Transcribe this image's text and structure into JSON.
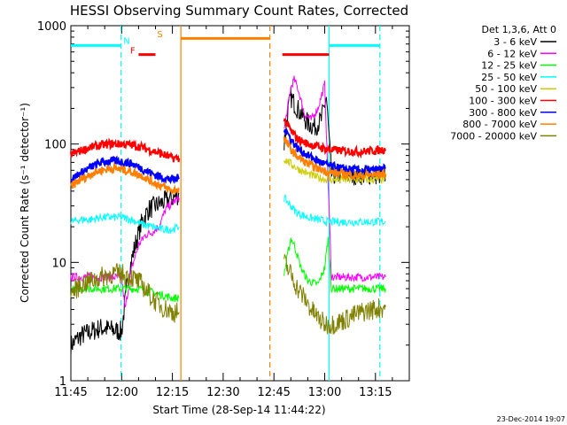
{
  "chart_data": {
    "type": "line",
    "title": "HESSI Observing Summary Count Rates, Corrected",
    "xlabel": "Start Time (28-Sep-14 11:44:22)",
    "ylabel": "Corrected Count Rate (s⁻¹ detector⁻¹)",
    "yscale": "log",
    "ylim": [
      1,
      1000
    ],
    "xlim_minutes": [
      0,
      100
    ],
    "x_ticks": [
      {
        "label": "11:45",
        "t": 0
      },
      {
        "label": "12:00",
        "t": 15
      },
      {
        "label": "12:15",
        "t": 30
      },
      {
        "label": "12:30",
        "t": 45
      },
      {
        "label": "12:45",
        "t": 60
      },
      {
        "label": "13:00",
        "t": 75
      },
      {
        "label": "13:15",
        "t": 90
      }
    ],
    "y_ticks": [
      {
        "label": "1",
        "v": 1
      },
      {
        "label": "10",
        "v": 10
      },
      {
        "label": "100",
        "v": 100
      },
      {
        "label": "1000",
        "v": 1000
      }
    ],
    "grid": false,
    "legend_position": "right",
    "legend_header": "Det 1,3,6, Att 0",
    "timestamp": "23-Dec-2014 19:07",
    "series": [
      {
        "name": "3 - 6 keV",
        "color": "#000000",
        "points": [
          [
            0,
            2.0
          ],
          [
            3,
            2.4
          ],
          [
            6,
            2.6
          ],
          [
            9,
            2.8
          ],
          [
            12,
            2.7
          ],
          [
            15,
            2.6
          ],
          [
            17,
            8
          ],
          [
            19,
            14
          ],
          [
            21,
            22
          ],
          [
            23,
            28
          ],
          [
            25,
            30
          ],
          [
            27,
            32
          ],
          [
            29,
            34
          ],
          [
            31,
            36
          ],
          [
            32,
            38
          ],
          [
            63,
            100
          ],
          [
            64,
            180
          ],
          [
            65,
            250
          ],
          [
            66,
            220
          ],
          [
            68,
            180
          ],
          [
            70,
            150
          ],
          [
            72,
            140
          ],
          [
            74,
            160
          ],
          [
            75.5,
            250
          ],
          [
            77,
            55
          ],
          [
            80,
            55
          ],
          [
            85,
            55
          ],
          [
            90,
            55
          ],
          [
            93,
            55
          ]
        ]
      },
      {
        "name": "6 - 12 keV",
        "color": "#ff00ff",
        "points": [
          [
            0,
            7.5
          ],
          [
            5,
            7.5
          ],
          [
            10,
            7.5
          ],
          [
            15,
            7.5
          ],
          [
            16,
            4.0
          ],
          [
            18,
            9
          ],
          [
            20,
            14
          ],
          [
            22,
            17
          ],
          [
            24,
            18
          ],
          [
            26,
            20
          ],
          [
            28,
            28
          ],
          [
            30,
            32
          ],
          [
            32,
            35
          ],
          [
            63,
            130
          ],
          [
            65,
            300
          ],
          [
            66,
            350
          ],
          [
            67,
            300
          ],
          [
            69,
            180
          ],
          [
            71,
            160
          ],
          [
            73,
            200
          ],
          [
            75,
            320
          ],
          [
            77,
            7.5
          ],
          [
            85,
            7.5
          ],
          [
            93,
            7.5
          ]
        ]
      },
      {
        "name": "12 - 25 keV",
        "color": "#00ff00",
        "points": [
          [
            0,
            6.0
          ],
          [
            5,
            6.0
          ],
          [
            10,
            6.0
          ],
          [
            15,
            6.0
          ],
          [
            20,
            6.0
          ],
          [
            25,
            5.5
          ],
          [
            30,
            5.0
          ],
          [
            32,
            5.0
          ],
          [
            63,
            8
          ],
          [
            65,
            16
          ],
          [
            66,
            14
          ],
          [
            68,
            9
          ],
          [
            70,
            7
          ],
          [
            73,
            6.5
          ],
          [
            75,
            9
          ],
          [
            76,
            16
          ],
          [
            77,
            6
          ],
          [
            85,
            6
          ],
          [
            93,
            6
          ]
        ]
      },
      {
        "name": "25 - 50 keV",
        "color": "#00ffff",
        "points": [
          [
            0,
            22
          ],
          [
            3,
            23
          ],
          [
            6,
            23
          ],
          [
            9,
            24
          ],
          [
            12,
            24
          ],
          [
            15,
            24
          ],
          [
            18,
            23
          ],
          [
            21,
            21
          ],
          [
            24,
            20
          ],
          [
            27,
            19
          ],
          [
            30,
            19
          ],
          [
            32,
            20
          ],
          [
            63,
            35
          ],
          [
            65,
            30
          ],
          [
            67,
            26
          ],
          [
            70,
            24
          ],
          [
            73,
            23
          ],
          [
            76,
            22
          ],
          [
            80,
            22
          ],
          [
            85,
            22
          ],
          [
            90,
            22
          ],
          [
            93,
            22
          ]
        ]
      },
      {
        "name": "50 - 100 keV",
        "color": "#cccc00",
        "points": [
          [
            63,
            75
          ],
          [
            65,
            68
          ],
          [
            67,
            62
          ],
          [
            70,
            56
          ],
          [
            73,
            52
          ],
          [
            76,
            50
          ],
          [
            80,
            50
          ],
          [
            85,
            50
          ],
          [
            90,
            50
          ],
          [
            93,
            50
          ]
        ]
      },
      {
        "name": "100 - 300 keV",
        "color": "#ff0000",
        "points": [
          [
            0,
            82
          ],
          [
            3,
            88
          ],
          [
            6,
            94
          ],
          [
            9,
            98
          ],
          [
            12,
            100
          ],
          [
            15,
            100
          ],
          [
            18,
            98
          ],
          [
            21,
            94
          ],
          [
            24,
            88
          ],
          [
            27,
            82
          ],
          [
            30,
            76
          ],
          [
            32,
            76
          ],
          [
            63,
            160
          ],
          [
            65,
            130
          ],
          [
            67,
            110
          ],
          [
            70,
            100
          ],
          [
            73,
            95
          ],
          [
            76,
            90
          ],
          [
            80,
            88
          ],
          [
            85,
            86
          ],
          [
            90,
            88
          ],
          [
            93,
            90
          ]
        ]
      },
      {
        "name": "300 - 800 keV",
        "color": "#0000ff",
        "points": [
          [
            0,
            50
          ],
          [
            3,
            57
          ],
          [
            6,
            64
          ],
          [
            9,
            70
          ],
          [
            12,
            72
          ],
          [
            15,
            71
          ],
          [
            18,
            68
          ],
          [
            21,
            62
          ],
          [
            24,
            56
          ],
          [
            27,
            52
          ],
          [
            30,
            50
          ],
          [
            32,
            52
          ],
          [
            63,
            140
          ],
          [
            65,
            110
          ],
          [
            67,
            92
          ],
          [
            70,
            80
          ],
          [
            73,
            72
          ],
          [
            76,
            66
          ],
          [
            80,
            62
          ],
          [
            85,
            60
          ],
          [
            90,
            60
          ],
          [
            93,
            62
          ]
        ]
      },
      {
        "name": "800 - 7000 keV",
        "color": "#ff8000",
        "points": [
          [
            0,
            44
          ],
          [
            3,
            50
          ],
          [
            6,
            56
          ],
          [
            9,
            60
          ],
          [
            12,
            62
          ],
          [
            15,
            61
          ],
          [
            18,
            58
          ],
          [
            21,
            54
          ],
          [
            24,
            48
          ],
          [
            27,
            44
          ],
          [
            30,
            40
          ],
          [
            32,
            42
          ],
          [
            63,
            110
          ],
          [
            65,
            90
          ],
          [
            67,
            78
          ],
          [
            70,
            68
          ],
          [
            73,
            62
          ],
          [
            76,
            58
          ],
          [
            80,
            56
          ],
          [
            85,
            54
          ],
          [
            90,
            55
          ],
          [
            93,
            56
          ]
        ]
      },
      {
        "name": "7000 - 20000 keV",
        "color": "#808000",
        "points": [
          [
            0,
            5.5
          ],
          [
            3,
            6.5
          ],
          [
            6,
            7.0
          ],
          [
            9,
            7.5
          ],
          [
            12,
            8.0
          ],
          [
            15,
            8.0
          ],
          [
            18,
            7.5
          ],
          [
            21,
            6.5
          ],
          [
            24,
            5.0
          ],
          [
            27,
            4.2
          ],
          [
            30,
            3.8
          ],
          [
            32,
            3.8
          ],
          [
            63,
            10
          ],
          [
            65,
            8
          ],
          [
            67,
            6
          ],
          [
            69,
            5
          ],
          [
            71,
            4
          ],
          [
            73,
            3.4
          ],
          [
            75,
            3.0
          ],
          [
            77,
            3.0
          ],
          [
            80,
            3.2
          ],
          [
            83,
            3.5
          ],
          [
            86,
            3.8
          ],
          [
            89,
            4.0
          ],
          [
            93,
            4.2
          ]
        ]
      }
    ],
    "annotations": {
      "labels": [
        {
          "text": "N",
          "color": "#00ffff",
          "t": 15.5,
          "v": 700
        },
        {
          "text": "F",
          "color": "#ff0000",
          "t": 17.5,
          "v": 580
        },
        {
          "text": "S",
          "color": "#ff8000",
          "t": 25.5,
          "v": 800
        }
      ],
      "bars": [
        {
          "color": "#00ffff",
          "t0": 0,
          "t1": 14.8,
          "v": 680
        },
        {
          "color": "#00ffff",
          "t0": 76.3,
          "t1": 91.3,
          "v": 680
        },
        {
          "color": "#ff0000",
          "t0": 20,
          "t1": 25,
          "v": 570
        },
        {
          "color": "#ff0000",
          "t0": 62.5,
          "t1": 76.3,
          "v": 570
        },
        {
          "color": "#ff8000",
          "t0": 32.5,
          "t1": 58.8,
          "v": 780
        }
      ],
      "vlines": [
        {
          "color": "#00ffff",
          "t": 14.8,
          "style": "dashed"
        },
        {
          "color": "#00ffff",
          "t": 76.3,
          "style": "solid"
        },
        {
          "color": "#00ffff",
          "t": 91.3,
          "style": "dashed"
        },
        {
          "color": "#ff8000",
          "t": 32.5,
          "style": "solid"
        },
        {
          "color": "#ff8000",
          "t": 58.8,
          "style": "dashed"
        }
      ]
    }
  }
}
